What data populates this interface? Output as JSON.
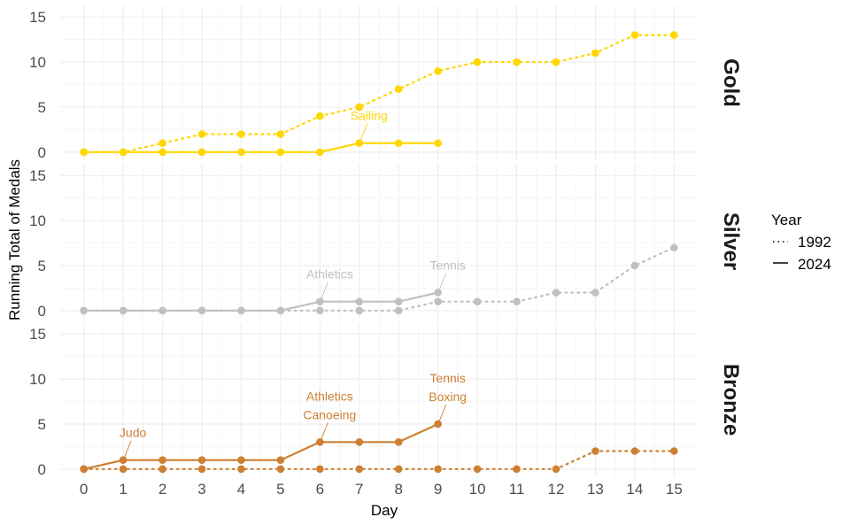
{
  "chart_data": {
    "type": "line",
    "xlabel": "Day",
    "ylabel": "Running Total of Medals",
    "x_ticks": [
      0,
      1,
      2,
      3,
      4,
      5,
      6,
      7,
      8,
      9,
      10,
      11,
      12,
      13,
      14,
      15
    ],
    "y_ticks": [
      0,
      5,
      10,
      15
    ],
    "xlim": [
      -0.6,
      15.6
    ],
    "ylim": [
      -0.9,
      16.3
    ],
    "legend": {
      "title": "Year",
      "position": "right",
      "entries": [
        {
          "label": "1992",
          "linetype": "dotted"
        },
        {
          "label": "2024",
          "linetype": "solid"
        }
      ]
    },
    "panels": [
      {
        "label": "Gold",
        "color": "#FFD700",
        "series": [
          {
            "name": "1992",
            "linetype": "dotted",
            "x": [
              0,
              1,
              2,
              3,
              4,
              5,
              6,
              7,
              8,
              9,
              10,
              11,
              12,
              13,
              14,
              15
            ],
            "y": [
              0,
              0,
              1,
              2,
              2,
              2,
              4,
              5,
              7,
              9,
              10,
              10,
              10,
              11,
              13,
              13
            ]
          },
          {
            "name": "2024",
            "linetype": "solid",
            "x": [
              0,
              1,
              2,
              3,
              4,
              5,
              6,
              7,
              8,
              9
            ],
            "y": [
              0,
              0,
              0,
              0,
              0,
              0,
              0,
              1,
              1,
              1
            ]
          }
        ],
        "annotations": [
          {
            "lines": [
              "Sailing"
            ],
            "x": 7,
            "y": 1
          }
        ]
      },
      {
        "label": "Silver",
        "color": "#C0C0C0",
        "series": [
          {
            "name": "1992",
            "linetype": "dotted",
            "x": [
              0,
              1,
              2,
              3,
              4,
              5,
              6,
              7,
              8,
              9,
              10,
              11,
              12,
              13,
              14,
              15
            ],
            "y": [
              0,
              0,
              0,
              0,
              0,
              0,
              0,
              0,
              0,
              1,
              1,
              1,
              2,
              2,
              5,
              7
            ]
          },
          {
            "name": "2024",
            "linetype": "solid",
            "x": [
              0,
              1,
              2,
              3,
              4,
              5,
              6,
              7,
              8,
              9
            ],
            "y": [
              0,
              0,
              0,
              0,
              0,
              0,
              1,
              1,
              1,
              2
            ]
          }
        ],
        "annotations": [
          {
            "lines": [
              "Athletics"
            ],
            "x": 6,
            "y": 1
          },
          {
            "lines": [
              "Tennis"
            ],
            "x": 9,
            "y": 2
          }
        ]
      },
      {
        "label": "Bronze",
        "color": "#CD7F32",
        "series": [
          {
            "name": "1992",
            "linetype": "dotted",
            "x": [
              0,
              1,
              2,
              3,
              4,
              5,
              6,
              7,
              8,
              9,
              10,
              11,
              12,
              13,
              14,
              15
            ],
            "y": [
              0,
              0,
              0,
              0,
              0,
              0,
              0,
              0,
              0,
              0,
              0,
              0,
              0,
              2,
              2,
              2
            ]
          },
          {
            "name": "2024",
            "linetype": "solid",
            "x": [
              0,
              1,
              2,
              3,
              4,
              5,
              6,
              7,
              8,
              9
            ],
            "y": [
              0,
              1,
              1,
              1,
              1,
              1,
              3,
              3,
              3,
              5
            ]
          }
        ],
        "annotations": [
          {
            "lines": [
              "Judo"
            ],
            "x": 1,
            "y": 1
          },
          {
            "lines": [
              "Athletics",
              "Canoeing"
            ],
            "x": 6,
            "y": 3
          },
          {
            "lines": [
              "Tennis",
              "Boxing"
            ],
            "x": 9,
            "y": 5
          }
        ]
      }
    ]
  }
}
